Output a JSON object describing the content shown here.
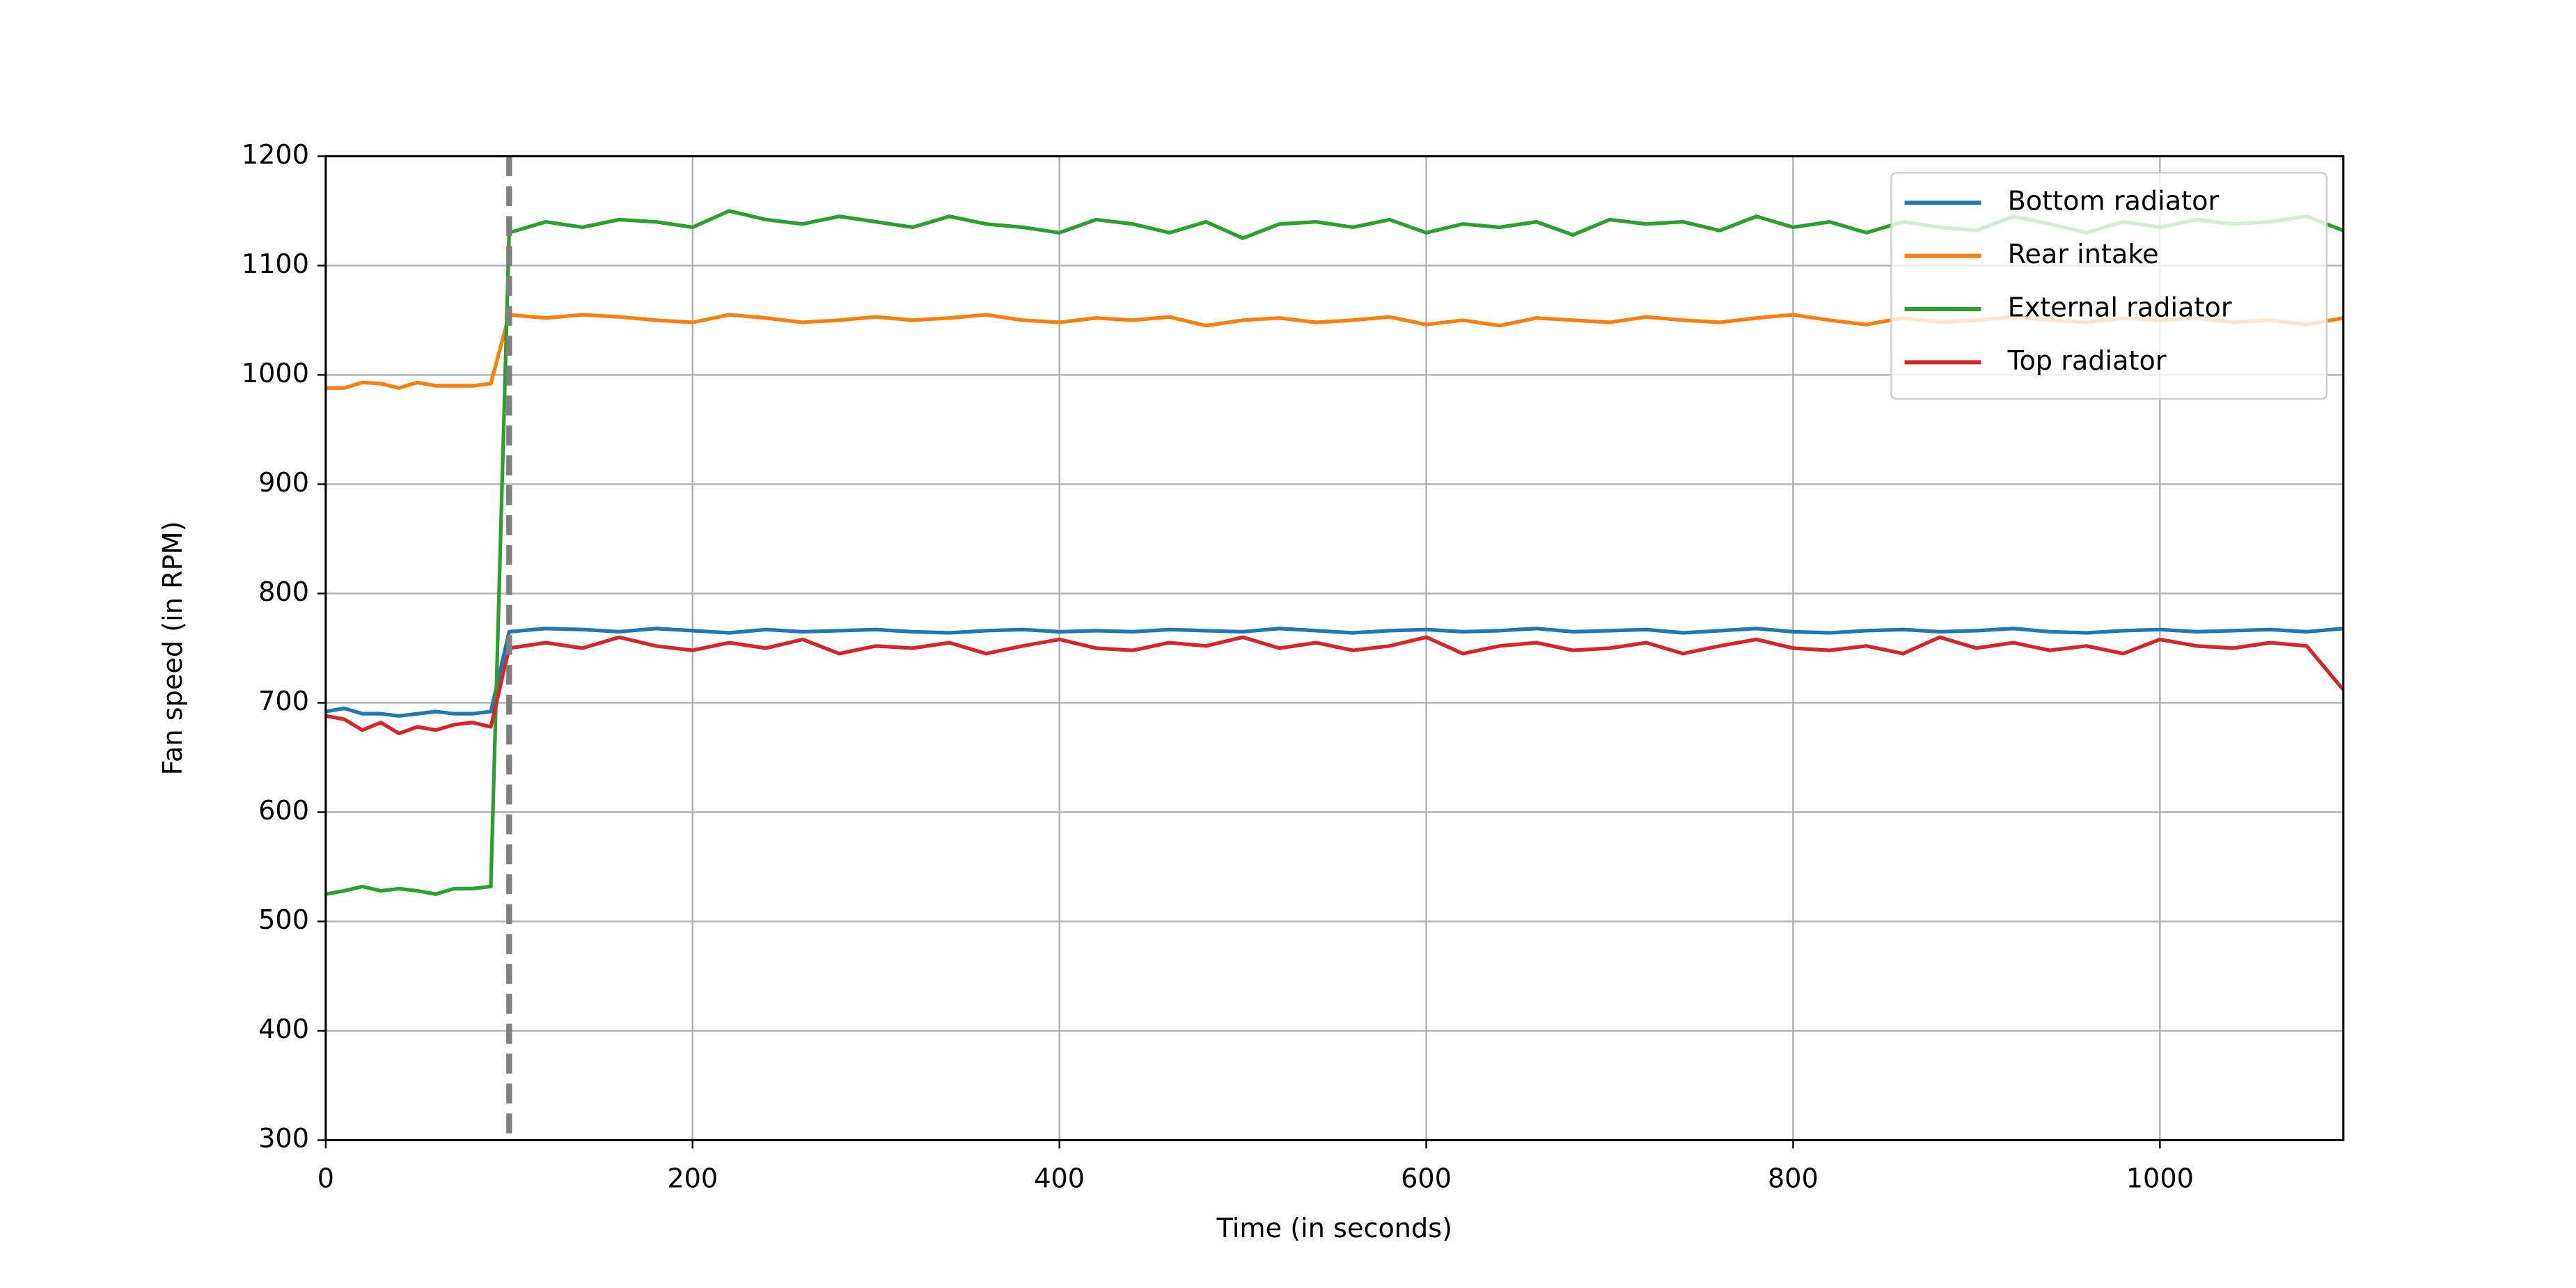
{
  "chart_data": {
    "type": "line",
    "xlabel": "Time (in seconds)",
    "ylabel": "Fan speed (in RPM)",
    "x": [
      0,
      10,
      20,
      30,
      40,
      50,
      60,
      70,
      80,
      90,
      100,
      120,
      140,
      160,
      180,
      200,
      220,
      240,
      260,
      280,
      300,
      320,
      340,
      360,
      380,
      400,
      420,
      440,
      460,
      480,
      500,
      520,
      540,
      560,
      580,
      600,
      620,
      640,
      660,
      680,
      700,
      720,
      740,
      760,
      780,
      800,
      820,
      840,
      860,
      880,
      900,
      920,
      940,
      960,
      980,
      1000,
      1020,
      1040,
      1060,
      1080,
      1100
    ],
    "series": [
      {
        "name": "Bottom radiator",
        "color": "#1f77b4",
        "values": [
          692,
          695,
          690,
          690,
          688,
          690,
          692,
          690,
          690,
          692,
          765,
          768,
          767,
          765,
          768,
          766,
          764,
          767,
          765,
          766,
          767,
          765,
          764,
          766,
          767,
          765,
          766,
          765,
          767,
          766,
          765,
          768,
          766,
          764,
          766,
          767,
          765,
          766,
          768,
          765,
          766,
          767,
          764,
          766,
          768,
          765,
          764,
          766,
          767,
          765,
          766,
          768,
          765,
          764,
          766,
          767,
          765,
          766,
          767,
          765,
          768
        ]
      },
      {
        "name": "Rear intake",
        "color": "#ff7f0e",
        "values": [
          988,
          988,
          993,
          992,
          988,
          993,
          990,
          990,
          990,
          992,
          1055,
          1052,
          1055,
          1053,
          1050,
          1048,
          1055,
          1052,
          1048,
          1050,
          1053,
          1050,
          1052,
          1055,
          1050,
          1048,
          1052,
          1050,
          1053,
          1045,
          1050,
          1052,
          1048,
          1050,
          1053,
          1046,
          1050,
          1045,
          1052,
          1050,
          1048,
          1053,
          1050,
          1048,
          1052,
          1055,
          1050,
          1046,
          1052,
          1048,
          1050,
          1053,
          1050,
          1048,
          1052,
          1050,
          1052,
          1048,
          1050,
          1046,
          1052
        ]
      },
      {
        "name": "External radiator",
        "color": "#2ca02c",
        "values": [
          525,
          528,
          532,
          528,
          530,
          528,
          525,
          530,
          530,
          532,
          1130,
          1140,
          1135,
          1142,
          1140,
          1135,
          1150,
          1142,
          1138,
          1145,
          1140,
          1135,
          1145,
          1138,
          1135,
          1130,
          1142,
          1138,
          1130,
          1140,
          1125,
          1138,
          1140,
          1135,
          1142,
          1130,
          1138,
          1135,
          1140,
          1128,
          1142,
          1138,
          1140,
          1132,
          1145,
          1135,
          1140,
          1130,
          1140,
          1135,
          1132,
          1145,
          1138,
          1130,
          1140,
          1135,
          1142,
          1138,
          1140,
          1145,
          1132
        ]
      },
      {
        "name": "Top radiator",
        "color": "#d62728",
        "values": [
          688,
          685,
          675,
          682,
          672,
          678,
          675,
          680,
          682,
          678,
          750,
          755,
          750,
          760,
          752,
          748,
          755,
          750,
          758,
          745,
          752,
          750,
          755,
          745,
          752,
          758,
          750,
          748,
          755,
          752,
          760,
          750,
          755,
          748,
          752,
          760,
          745,
          752,
          755,
          748,
          750,
          755,
          745,
          752,
          758,
          750,
          748,
          752,
          745,
          760,
          750,
          755,
          748,
          752,
          745,
          758,
          752,
          750,
          755,
          752,
          712
        ]
      }
    ],
    "vline_x": 100,
    "xlim": [
      0,
      1100
    ],
    "xticks": [
      0,
      200,
      400,
      600,
      800,
      1000
    ],
    "ylim": [
      300,
      1200
    ],
    "yticks": [
      300,
      400,
      500,
      600,
      700,
      800,
      900,
      1000,
      1100,
      1200
    ],
    "grid": true,
    "legend": "upper right"
  }
}
